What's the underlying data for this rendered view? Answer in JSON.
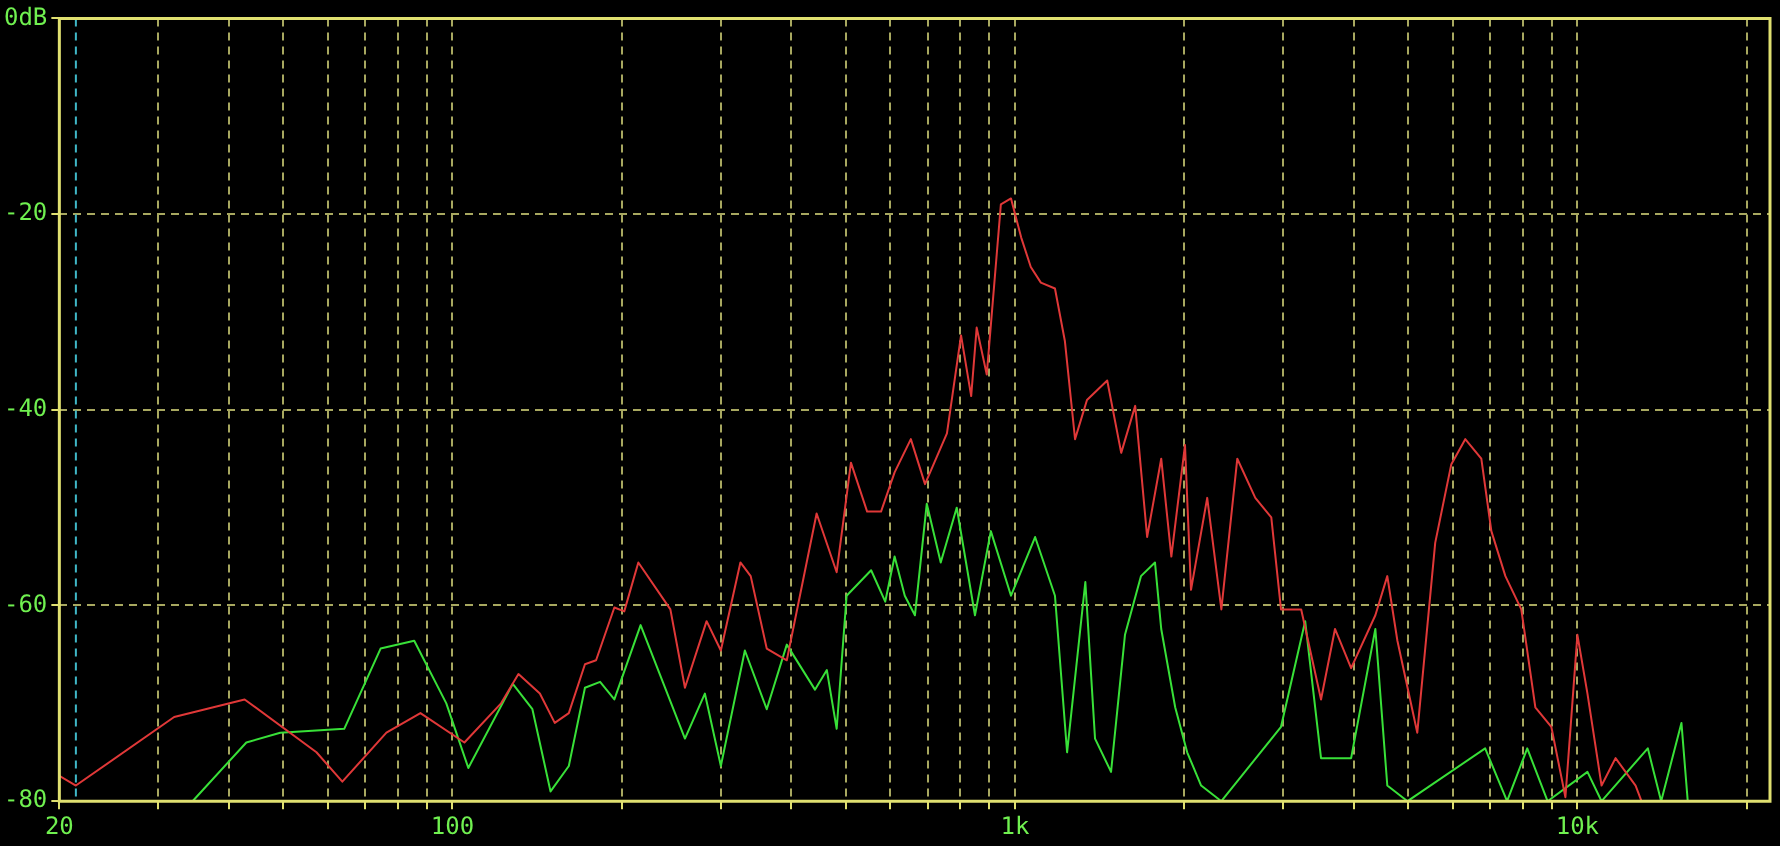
{
  "chart_data": {
    "type": "line",
    "xlim": [
      20,
      22000
    ],
    "ylim": [
      -80,
      0
    ],
    "xticks": [
      20,
      {
        "value": 30,
        "label": null
      },
      {
        "value": 40,
        "label": null
      },
      {
        "value": 50,
        "label": null
      },
      {
        "value": 60,
        "label": null
      },
      {
        "value": 70,
        "label": null
      },
      {
        "value": 80,
        "label": null
      },
      {
        "value": 90,
        "label": null
      },
      100,
      {
        "value": 200,
        "label": null
      },
      {
        "value": 300,
        "label": null
      },
      {
        "value": 400,
        "label": null
      },
      {
        "value": 500,
        "label": null
      },
      {
        "value": 600,
        "label": null
      },
      {
        "value": 700,
        "label": null
      },
      {
        "value": 800,
        "label": null
      },
      {
        "value": 900,
        "label": null
      },
      {
        "value": 1000,
        "label": "1k"
      },
      {
        "value": 2000,
        "label": null
      },
      {
        "value": 3000,
        "label": null
      },
      {
        "value": 4000,
        "label": null
      },
      {
        "value": 5000,
        "label": null
      },
      {
        "value": 6000,
        "label": null
      },
      {
        "value": 7000,
        "label": null
      },
      {
        "value": 8000,
        "label": null
      },
      {
        "value": 9000,
        "label": null
      },
      {
        "value": 10000,
        "label": "10k"
      },
      {
        "value": 20000,
        "label": null
      }
    ],
    "yticks": [
      {
        "value": 0,
        "label": "0dB"
      },
      -20,
      -40,
      -60,
      -80
    ],
    "log": "x",
    "grid": true,
    "marker": "none",
    "line_style": "solid",
    "ref_lines": [
      {
        "axis": "x",
        "value": 21.4,
        "color": "#40b8c8",
        "line_style": "dashed"
      }
    ],
    "series": [
      {
        "color": "#e03838",
        "x": [
          20,
          21.4,
          32,
          42.7,
          57.3,
          63.7,
          76.3,
          87.7,
          105,
          122,
          131,
          143,
          152,
          161,
          172,
          180,
          194,
          202,
          214,
          244,
          259,
          283,
          300,
          325,
          339,
          362,
          393,
          444,
          482,
          511,
          546,
          578,
          611,
          653,
          692,
          757,
          802,
          836,
          855,
          891,
          944,
          984,
          1026,
          1067,
          1112,
          1178,
          1227,
          1279,
          1343,
          1459,
          1545,
          1636,
          1718,
          1820,
          1897,
          2006,
          2056,
          2197,
          2328,
          2485,
          2675,
          2856,
          2972,
          3228,
          3501,
          3707,
          3960,
          4373,
          4592,
          4786,
          5192,
          5587,
          5966,
          6318,
          6748,
          7031,
          7447,
          7948,
          8418,
          8988,
          9521,
          10000,
          10420,
          11040,
          11690,
          12690,
          13000
        ],
        "values": [
          -77.4,
          -78.4,
          -71.4,
          -69.6,
          -75,
          -78,
          -73,
          -71,
          -74,
          -70,
          -67,
          -69,
          -72,
          -71,
          -66,
          -65.6,
          -60.2,
          -60.6,
          -55.6,
          -60.4,
          -68.4,
          -61.6,
          -64.6,
          -55.6,
          -57,
          -64.4,
          -65.6,
          -50.6,
          -56.6,
          -45.4,
          -50.4,
          -50.4,
          -46.4,
          -43,
          -47.6,
          -42.4,
          -32.4,
          -38.6,
          -31.6,
          -36.4,
          -19,
          -18.4,
          -22.4,
          -25.4,
          -27,
          -27.6,
          -33,
          -43,
          -39,
          -37,
          -44.4,
          -39.6,
          -53,
          -45,
          -55,
          -43.6,
          -58.4,
          -49,
          -60.4,
          -45,
          -49,
          -51,
          -60.4,
          -60.4,
          -69.6,
          -62.4,
          -66.4,
          -61,
          -57,
          -63.6,
          -73,
          -53.6,
          -45.6,
          -43,
          -45,
          -52.4,
          -57,
          -60.4,
          -70.4,
          -72.4,
          -79.6,
          -63,
          -69,
          -78.4,
          -75.6,
          -78.4,
          -80
        ]
      },
      {
        "color": "#38e038",
        "x": [
          34.5,
          43,
          49.4,
          64.2,
          74.5,
          85.5,
          97.5,
          106.7,
          128,
          138.7,
          149.4,
          161,
          172,
          183,
          194,
          216,
          259,
          281,
          300,
          331,
          362,
          393,
          441,
          463,
          482,
          502,
          555,
          588,
          611,
          637,
          664,
          697,
          738,
          788,
          849,
          906,
          984,
          1086,
          1178,
          1238,
          1334,
          1388,
          1482,
          1569,
          1675,
          1774,
          1820,
          1927,
          2024,
          2143,
          2328,
          2972,
          3281,
          3501,
          3960,
          4373,
          4592,
          4989,
          6855,
          7499,
          8144,
          8851,
          10420,
          11040,
          13340,
          14090,
          15310,
          15710
        ],
        "values": [
          -80,
          -74,
          -73,
          -72.6,
          -64.4,
          -63.6,
          -70,
          -76.6,
          -68,
          -70.6,
          -79,
          -76.4,
          -68.4,
          -67.8,
          -69.6,
          -62,
          -73.6,
          -69,
          -76.4,
          -64.6,
          -70.6,
          -64,
          -68.6,
          -66.6,
          -72.6,
          -59,
          -56.4,
          -59.6,
          -55,
          -59,
          -61,
          -49.6,
          -55.6,
          -50,
          -61,
          -52.4,
          -59,
          -53,
          -59,
          -75,
          -57.6,
          -73.6,
          -77,
          -63,
          -57,
          -55.6,
          -62.4,
          -70.4,
          -75,
          -78.4,
          -80,
          -72.4,
          -61.6,
          -75.6,
          -75.6,
          -62.4,
          -78.4,
          -80,
          -74.6,
          -80,
          -74.6,
          -80,
          -77,
          -80,
          -74.6,
          -80,
          -72,
          -80
        ]
      }
    ]
  }
}
